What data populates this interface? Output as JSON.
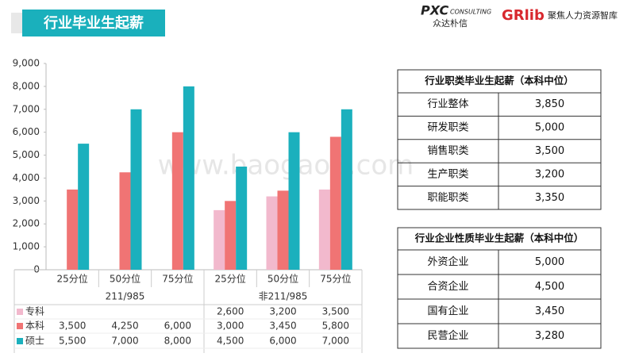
{
  "header": {
    "title": "行业毕业生起薪",
    "logo_left": "PXC",
    "logo_left_sub": "CONSULTING",
    "logo_left_cn": "众达朴信",
    "logo_right": "GRlib",
    "logo_right_cn": "聚焦人力资源智库"
  },
  "watermark": "www.baogao8.com",
  "chart_data": {
    "type": "bar",
    "categories": [
      "25分位",
      "50分位",
      "75分位",
      "25分位",
      "50分位",
      "75分位"
    ],
    "category_groups": [
      "211/985",
      "非211/985"
    ],
    "series": [
      {
        "name": "专科",
        "color": "#f2b9cd",
        "values": [
          null,
          null,
          null,
          2600,
          3200,
          3500
        ],
        "value_labels": [
          null,
          null,
          null,
          "2,600",
          "3,200",
          "3,500"
        ]
      },
      {
        "name": "本科",
        "color": "#f07474",
        "values": [
          3500,
          4250,
          6000,
          3000,
          3450,
          5800
        ],
        "value_labels": [
          "3,500",
          "4,250",
          "6,000",
          "3,000",
          "3,450",
          "5,800"
        ]
      },
      {
        "name": "硕士",
        "color": "#1bb0bd",
        "values": [
          5500,
          7000,
          8000,
          4500,
          6000,
          7000
        ],
        "value_labels": [
          "5,500",
          "7,000",
          "8,000",
          "4,500",
          "6,000",
          "7,000"
        ]
      }
    ],
    "ylim": [
      0,
      9000
    ],
    "yticks": [
      0,
      {
        "value": 1000,
        "label": "1,000"
      },
      {
        "value": 2000,
        "label": "2,000"
      },
      {
        "value": 3000,
        "label": "3,000"
      },
      {
        "value": 4000,
        "label": "4,000"
      },
      {
        "value": 5000,
        "label": "5,000"
      },
      {
        "value": 6000,
        "label": "6,000"
      },
      {
        "value": 7000,
        "label": "7,000"
      },
      {
        "value": 8000,
        "label": "8,000"
      },
      {
        "value": 9000,
        "label": "9,000"
      }
    ]
  },
  "tables": [
    {
      "title": "行业职类毕业生起薪（本科中位）",
      "rows": [
        [
          "行业整体",
          "3,850"
        ],
        [
          "研发职类",
          "5,000"
        ],
        [
          "销售职类",
          "3,500"
        ],
        [
          "生产职类",
          "3,200"
        ],
        [
          "职能职类",
          "3,350"
        ]
      ]
    },
    {
      "title": "行业企业性质毕业生起薪（本科中位）",
      "rows": [
        [
          "外资企业",
          "5,000"
        ],
        [
          "合资企业",
          "4,500"
        ],
        [
          "国有企业",
          "3,450"
        ],
        [
          "民营企业",
          "3,280"
        ]
      ]
    }
  ]
}
